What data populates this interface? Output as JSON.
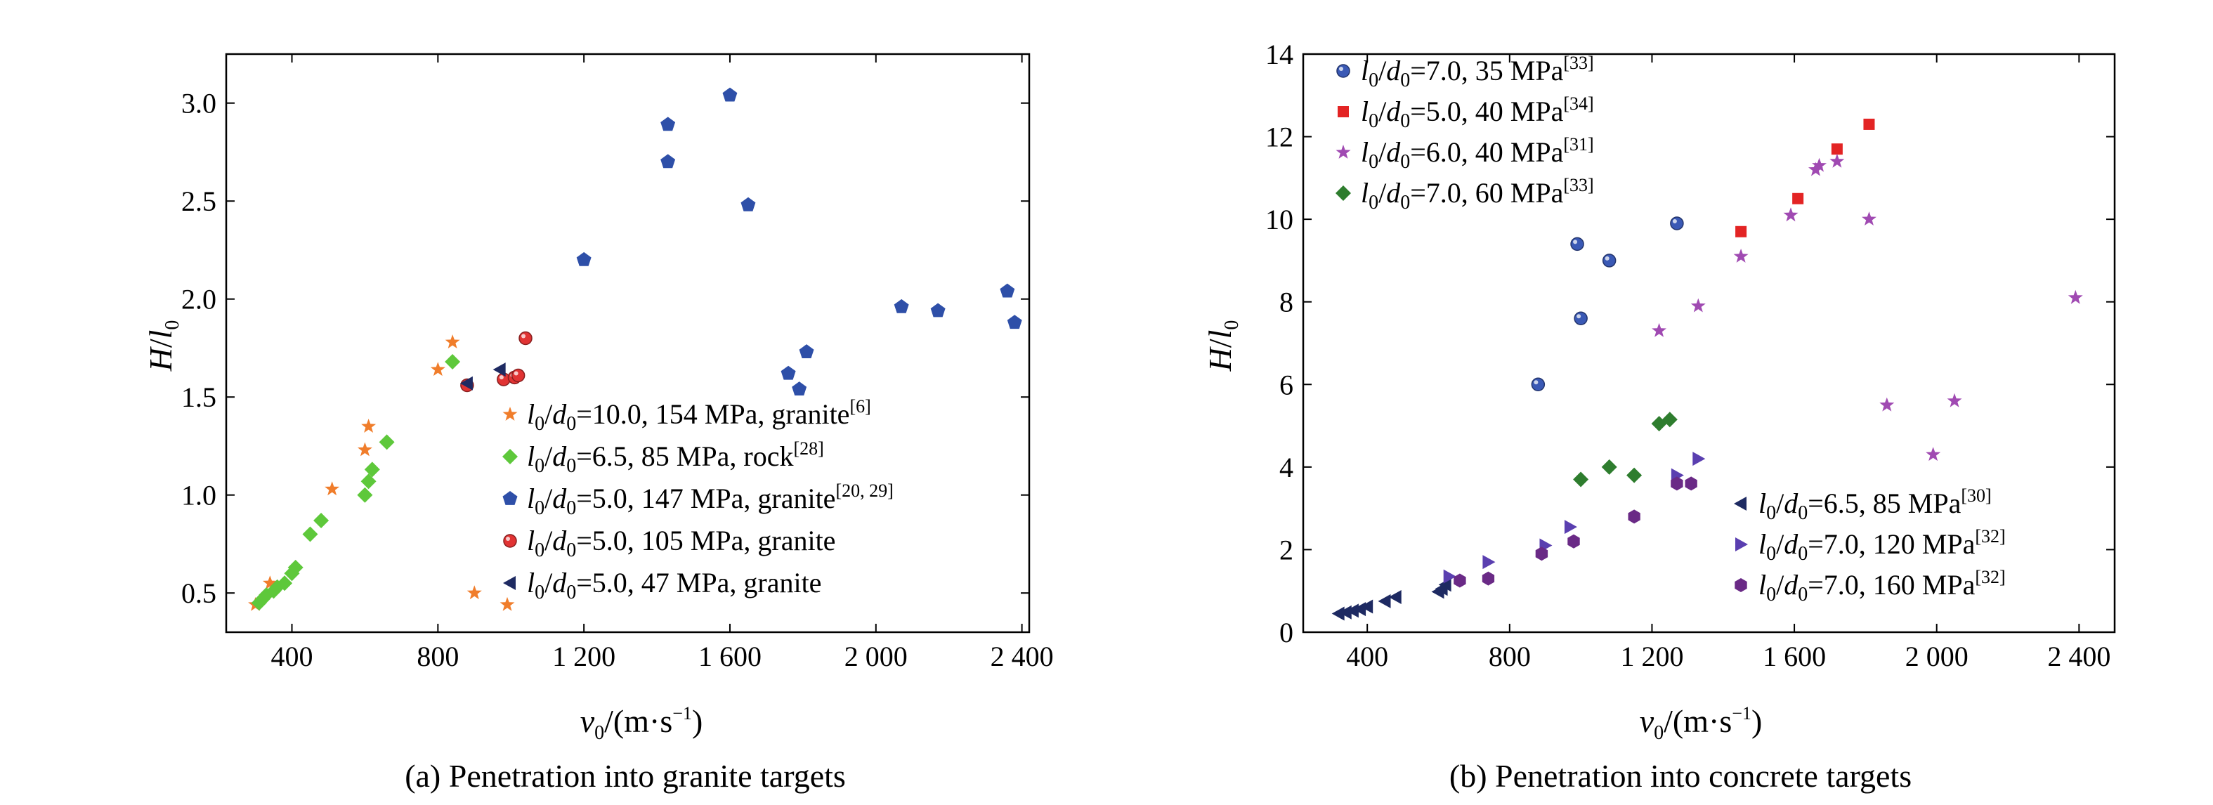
{
  "figure": {
    "panels": [
      {
        "caption": "(a) Penetration into granite targets",
        "x_label": {
          "var": "v",
          "sub": "0",
          "unit_pre": "/(m·s",
          "unit_exp": "−1",
          "unit_post": ")"
        },
        "y_label": {
          "var": "H",
          "slash": "/",
          "var2": "l",
          "sub": "0"
        },
        "legend": [
          {
            "ratio": "10.0",
            "text": ", 154 MPa, granite",
            "ref": "[6]"
          },
          {
            "ratio": "6.5",
            "text": ", 85 MPa, rock",
            "ref": "[28]"
          },
          {
            "ratio": "5.0",
            "text": ", 147 MPa, granite",
            "ref": "[20, 29]"
          },
          {
            "ratio": "5.0",
            "text": ", 105 MPa, granite",
            "ref": ""
          },
          {
            "ratio": "5.0",
            "text": ", 47 MPa, granite",
            "ref": ""
          }
        ]
      },
      {
        "caption": "(b) Penetration into concrete targets",
        "x_label": {
          "var": "v",
          "sub": "0",
          "unit_pre": "/(m·s",
          "unit_exp": "−1",
          "unit_post": ")"
        },
        "y_label": {
          "var": "H",
          "slash": "/",
          "var2": "l",
          "sub": "0"
        },
        "legend": [
          {
            "ratio": "7.0",
            "text": ", 35 MPa",
            "ref": "[33]"
          },
          {
            "ratio": "5.0",
            "text": ", 40 MPa",
            "ref": "[34]"
          },
          {
            "ratio": "6.0",
            "text": ", 40 MPa",
            "ref": "[31]"
          },
          {
            "ratio": "7.0",
            "text": ", 60 MPa",
            "ref": "[33]"
          },
          {
            "ratio": "6.5",
            "text": ", 85 MPa",
            "ref": "[30]"
          },
          {
            "ratio": "7.0",
            "text": ", 120 MPa",
            "ref": "[32]"
          },
          {
            "ratio": "7.0",
            "text": ", 160 MPa",
            "ref": "[32]"
          }
        ]
      }
    ]
  },
  "chart_data": [
    {
      "type": "scatter",
      "xlim": [
        220,
        2420
      ],
      "ylim": [
        0.3,
        3.25
      ],
      "x_ticks": [
        400,
        800,
        1200,
        1600,
        2000,
        2400
      ],
      "x_tick_labels": [
        "400",
        "800",
        "1 200",
        "1 600",
        "2 000",
        "2 400"
      ],
      "y_ticks": [
        0.5,
        1.0,
        1.5,
        2.0,
        2.5,
        3.0
      ],
      "y_tick_labels": [
        "0.5",
        "1.0",
        "1.5",
        "2.0",
        "2.5",
        "3.0"
      ],
      "legend_position": "lower-right",
      "series": [
        {
          "marker": "star",
          "color": "#f07d2b",
          "x": [
            300,
            340,
            510,
            600,
            610,
            800,
            840,
            900,
            990
          ],
          "y": [
            0.44,
            0.55,
            1.03,
            1.23,
            1.35,
            1.64,
            1.78,
            0.5,
            0.44
          ]
        },
        {
          "marker": "diamond",
          "color": "#5ec83b",
          "x": [
            310,
            320,
            330,
            350,
            360,
            380,
            400,
            410,
            450,
            480,
            600,
            610,
            620,
            660,
            840
          ],
          "y": [
            0.45,
            0.47,
            0.49,
            0.51,
            0.53,
            0.55,
            0.6,
            0.63,
            0.8,
            0.87,
            1.0,
            1.07,
            1.13,
            1.27,
            1.68
          ]
        },
        {
          "marker": "pentagon",
          "color": "#2e4fa8",
          "x": [
            1200,
            1430,
            1430,
            1600,
            1650,
            1760,
            1790,
            1810,
            2070,
            2170,
            2360,
            2380
          ],
          "y": [
            2.2,
            2.7,
            2.89,
            3.04,
            2.48,
            1.62,
            1.54,
            1.73,
            1.96,
            1.94,
            2.04,
            1.88
          ]
        },
        {
          "marker": "sphere",
          "color": "#e13333",
          "x": [
            880,
            980,
            1010,
            1020,
            1040
          ],
          "y": [
            1.56,
            1.59,
            1.6,
            1.61,
            1.8
          ]
        },
        {
          "marker": "tri-left",
          "color": "#1e2a62",
          "x": [
            880,
            970
          ],
          "y": [
            1.57,
            1.64
          ]
        }
      ]
    },
    {
      "type": "scatter",
      "xlim": [
        220,
        2500
      ],
      "ylim": [
        0,
        14
      ],
      "x_ticks": [
        400,
        800,
        1200,
        1600,
        2000,
        2400
      ],
      "x_tick_labels": [
        "400",
        "800",
        "1 200",
        "1 600",
        "2 000",
        "2 400"
      ],
      "y_ticks": [
        0,
        2,
        4,
        6,
        8,
        10,
        12,
        14
      ],
      "y_tick_labels": [
        "0",
        "2",
        "4",
        "6",
        "8",
        "10",
        "12",
        "14"
      ],
      "legend_position": "top-left and lower-right",
      "series": [
        {
          "marker": "sphere",
          "color": "#3a59b5",
          "x": [
            880,
            990,
            1000,
            1080,
            1270
          ],
          "y": [
            6.0,
            9.4,
            7.6,
            9.0,
            9.9
          ]
        },
        {
          "marker": "square",
          "color": "#e32424",
          "x": [
            1450,
            1610,
            1720,
            1810
          ],
          "y": [
            9.7,
            10.5,
            11.7,
            12.3
          ]
        },
        {
          "marker": "star",
          "color": "#a04ab2",
          "x": [
            1220,
            1330,
            1450,
            1590,
            1660,
            1670,
            1720,
            1810,
            1860,
            1990,
            2050,
            2390
          ],
          "y": [
            7.3,
            7.9,
            9.1,
            10.1,
            11.2,
            11.3,
            11.4,
            10.0,
            5.5,
            4.3,
            5.6,
            8.1
          ]
        },
        {
          "marker": "diamond",
          "color": "#2e7d2e",
          "x": [
            1000,
            1080,
            1150,
            1220,
            1250
          ],
          "y": [
            3.7,
            4.0,
            3.8,
            5.05,
            5.15
          ]
        },
        {
          "marker": "tri-left",
          "color": "#1e2a62",
          "x": [
            320,
            340,
            360,
            380,
            400,
            450,
            480,
            600,
            610,
            620
          ],
          "y": [
            0.45,
            0.48,
            0.52,
            0.56,
            0.62,
            0.75,
            0.85,
            0.98,
            1.05,
            1.15
          ]
        },
        {
          "marker": "tri-right",
          "color": "#5a3fb0",
          "x": [
            630,
            740,
            900,
            970,
            1270,
            1330
          ],
          "y": [
            1.35,
            1.7,
            2.1,
            2.55,
            3.8,
            4.2
          ]
        },
        {
          "marker": "hexagon",
          "color": "#6a2a86",
          "x": [
            660,
            740,
            890,
            980,
            1150,
            1270,
            1310
          ],
          "y": [
            1.25,
            1.3,
            1.9,
            2.2,
            2.8,
            3.6,
            3.6
          ]
        }
      ]
    }
  ]
}
